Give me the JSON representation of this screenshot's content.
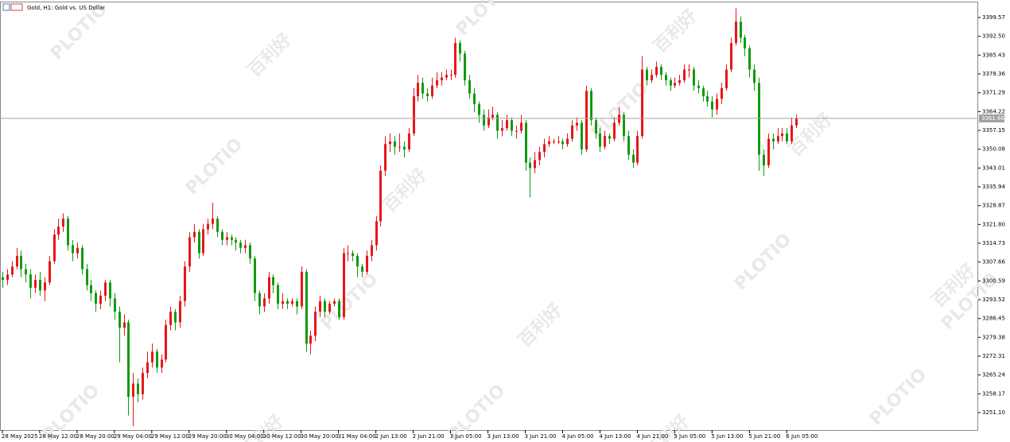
{
  "chart_data": {
    "type": "candlestick",
    "title": "Gold, H1:  Gold vs. US Dollar",
    "watermark_logo": "PLOTIO",
    "watermark_text": "百利好",
    "up_color": "#e8161b",
    "down_color": "#119a11",
    "xlim": [
      -0.5,
      209
    ],
    "ylim": [
      3244.53,
      3405.25
    ],
    "yticks": [
      3399.57,
      {
        "value": 3392.5,
        "label": "3392.50"
      },
      3385.43,
      3378.36,
      3371.29,
      3364.22,
      3357.15,
      3350.08,
      3343.01,
      3335.94,
      3328.87,
      {
        "value": 3321.8,
        "label": "3321.80"
      },
      3314.73,
      3307.66,
      3300.59,
      3293.52,
      3286.45,
      3279.38,
      3272.31,
      3265.24,
      3258.17,
      {
        "value": 3251.1,
        "label": "3251.10"
      }
    ],
    "xticks": [
      {
        "value": 0,
        "label": "28 May 2025"
      },
      {
        "value": 8,
        "label": "28 May 12:00"
      },
      {
        "value": 16,
        "label": "28 May 20:00"
      },
      {
        "value": 24,
        "label": "29 May 04:00"
      },
      {
        "value": 32,
        "label": "29 May 12:00"
      },
      {
        "value": 40,
        "label": "29 May 20:00"
      },
      {
        "value": 48,
        "label": "30 May 04:00"
      },
      {
        "value": 56,
        "label": "30 May 12:00"
      },
      {
        "value": 64,
        "label": "30 May 20:00"
      },
      {
        "value": 72,
        "label": "31 May 04:00"
      },
      {
        "value": 80,
        "label": "2 Jun 13:00"
      },
      {
        "value": 88,
        "label": "2 Jun 21:00"
      },
      {
        "value": 96,
        "label": "3 Jun 05:00"
      },
      {
        "value": 104,
        "label": "3 Jun 13:00"
      },
      {
        "value": 112,
        "label": "3 Jun 21:00"
      },
      {
        "value": 120,
        "label": "4 Jun 05:00"
      },
      {
        "value": 128,
        "label": "4 Jun 13:00"
      },
      {
        "value": 136,
        "label": "4 Jun 21:00"
      },
      {
        "value": 144,
        "label": "5 Jun 05:00"
      },
      {
        "value": 152,
        "label": "5 Jun 13:00"
      },
      {
        "value": 160,
        "label": "5 Jun 21:00"
      },
      {
        "value": 168,
        "label": "6 Jun 05:00"
      }
    ],
    "candles": [
      [
        3302,
        3304,
        3298,
        3301
      ],
      [
        3301,
        3305,
        3299,
        3303
      ],
      [
        3303,
        3308,
        3302,
        3306
      ],
      [
        3306,
        3313,
        3305,
        3310
      ],
      [
        3310,
        3312,
        3302,
        3305
      ],
      [
        3305,
        3307,
        3300,
        3303
      ],
      [
        3303,
        3305,
        3294,
        3298
      ],
      [
        3298,
        3303,
        3296,
        3301
      ],
      [
        3301,
        3304,
        3295,
        3297
      ],
      [
        3297,
        3302,
        3293,
        3300
      ],
      [
        3300,
        3310,
        3299,
        3308
      ],
      [
        3308,
        3320,
        3307,
        3318
      ],
      [
        3318,
        3324,
        3316,
        3321
      ],
      [
        3321,
        3326,
        3319,
        3324
      ],
      [
        3324,
        3325,
        3312,
        3314
      ],
      [
        3314,
        3316,
        3308,
        3311
      ],
      [
        3311,
        3315,
        3309,
        3313
      ],
      [
        3313,
        3314,
        3303,
        3305
      ],
      [
        3305,
        3307,
        3297,
        3299
      ],
      [
        3299,
        3301,
        3293,
        3296
      ],
      [
        3296,
        3297,
        3289,
        3292
      ],
      [
        3292,
        3297,
        3290,
        3295
      ],
      [
        3295,
        3301,
        3293,
        3300
      ],
      [
        3300,
        3301,
        3291,
        3294
      ],
      [
        3294,
        3296,
        3286,
        3289
      ],
      [
        3289,
        3291,
        3270,
        3283
      ],
      [
        3283,
        3288,
        3280,
        3285
      ],
      [
        3285,
        3286,
        3250,
        3257
      ],
      [
        3257,
        3266,
        3246,
        3262
      ],
      [
        3262,
        3264,
        3255,
        3258
      ],
      [
        3258,
        3268,
        3256,
        3266
      ],
      [
        3266,
        3274,
        3264,
        3270
      ],
      [
        3270,
        3277,
        3268,
        3274
      ],
      [
        3274,
        3275,
        3266,
        3268
      ],
      [
        3268,
        3273,
        3266,
        3271
      ],
      [
        3271,
        3286,
        3270,
        3284
      ],
      [
        3284,
        3291,
        3282,
        3289
      ],
      [
        3289,
        3290,
        3282,
        3285
      ],
      [
        3285,
        3295,
        3283,
        3293
      ],
      [
        3293,
        3308,
        3291,
        3306
      ],
      [
        3306,
        3319,
        3304,
        3317
      ],
      [
        3317,
        3322,
        3315,
        3319
      ],
      [
        3319,
        3320,
        3309,
        3311
      ],
      [
        3311,
        3322,
        3310,
        3320
      ],
      [
        3320,
        3324,
        3318,
        3322
      ],
      [
        3322,
        3330,
        3320,
        3324
      ],
      [
        3324,
        3325,
        3317,
        3319
      ],
      [
        3319,
        3320,
        3314,
        3316
      ],
      [
        3316,
        3319,
        3314,
        3317
      ],
      [
        3317,
        3318,
        3314,
        3316
      ],
      [
        3316,
        3317,
        3312,
        3315
      ],
      [
        3315,
        3316,
        3311,
        3313
      ],
      [
        3313,
        3316,
        3311,
        3314
      ],
      [
        3314,
        3315,
        3307,
        3309
      ],
      [
        3309,
        3310,
        3293,
        3296
      ],
      [
        3296,
        3297,
        3288,
        3291
      ],
      [
        3291,
        3296,
        3289,
        3294
      ],
      [
        3294,
        3304,
        3292,
        3302
      ],
      [
        3302,
        3303,
        3296,
        3299
      ],
      [
        3299,
        3300,
        3290,
        3292
      ],
      [
        3292,
        3296,
        3290,
        3293
      ],
      [
        3293,
        3294,
        3290,
        3292
      ],
      [
        3292,
        3294,
        3291,
        3293
      ],
      [
        3293,
        3294,
        3288,
        3291
      ],
      [
        3291,
        3306,
        3290,
        3304
      ],
      [
        3304,
        3305,
        3274,
        3277
      ],
      [
        3277,
        3282,
        3273,
        3280
      ],
      [
        3280,
        3291,
        3278,
        3289
      ],
      [
        3289,
        3295,
        3287,
        3293
      ],
      [
        3293,
        3294,
        3287,
        3289
      ],
      [
        3289,
        3293,
        3288,
        3292
      ],
      [
        3292,
        3294,
        3291,
        3293
      ],
      [
        3293,
        3294,
        3286,
        3287
      ],
      [
        3287,
        3313,
        3286,
        3311
      ],
      [
        3311,
        3314,
        3308,
        3311
      ],
      [
        3311,
        3312,
        3308,
        3310
      ],
      [
        3310,
        3311,
        3302,
        3306
      ],
      [
        3306,
        3307,
        3302,
        3304
      ],
      [
        3304,
        3312,
        3303,
        3310
      ],
      [
        3310,
        3316,
        3308,
        3314
      ],
      [
        3314,
        3325,
        3312,
        3323
      ],
      [
        3323,
        3344,
        3321,
        3342
      ],
      [
        3342,
        3355,
        3340,
        3352
      ],
      [
        3352,
        3356,
        3349,
        3353
      ],
      [
        3353,
        3355,
        3348,
        3351
      ],
      [
        3351,
        3356,
        3349,
        3351
      ],
      [
        3351,
        3353,
        3347,
        3350
      ],
      [
        3350,
        3358,
        3349,
        3356
      ],
      [
        3356,
        3373,
        3355,
        3370
      ],
      [
        3370,
        3378,
        3368,
        3375
      ],
      [
        3375,
        3377,
        3369,
        3371
      ],
      [
        3371,
        3373,
        3368,
        3370
      ],
      [
        3370,
        3377,
        3369,
        3374
      ],
      [
        3374,
        3379,
        3373,
        3376
      ],
      [
        3376,
        3379,
        3374,
        3377
      ],
      [
        3377,
        3380,
        3376,
        3378
      ],
      [
        3378,
        3380,
        3376,
        3378
      ],
      [
        3378,
        3392,
        3377,
        3390
      ],
      [
        3390,
        3391,
        3383,
        3386
      ],
      [
        3386,
        3387,
        3374,
        3376
      ],
      [
        3376,
        3378,
        3369,
        3371
      ],
      [
        3371,
        3373,
        3364,
        3367
      ],
      [
        3367,
        3368,
        3360,
        3363
      ],
      [
        3363,
        3365,
        3357,
        3359
      ],
      [
        3359,
        3365,
        3358,
        3362
      ],
      [
        3362,
        3366,
        3361,
        3363
      ],
      [
        3363,
        3364,
        3354,
        3357
      ],
      [
        3357,
        3361,
        3355,
        3358
      ],
      [
        3358,
        3363,
        3357,
        3361
      ],
      [
        3361,
        3362,
        3355,
        3357
      ],
      [
        3357,
        3359,
        3354,
        3357
      ],
      [
        3357,
        3363,
        3356,
        3360
      ],
      [
        3360,
        3361,
        3342,
        3345
      ],
      [
        3345,
        3347,
        3332,
        3343
      ],
      [
        3343,
        3349,
        3341,
        3346
      ],
      [
        3346,
        3351,
        3344,
        3349
      ],
      [
        3349,
        3354,
        3347,
        3352
      ],
      [
        3352,
        3355,
        3351,
        3353
      ],
      [
        3353,
        3354,
        3352,
        3353
      ],
      [
        3353,
        3355,
        3352,
        3353
      ],
      [
        3353,
        3354,
        3350,
        3352
      ],
      [
        3352,
        3356,
        3351,
        3354
      ],
      [
        3354,
        3361,
        3353,
        3359
      ],
      [
        3359,
        3362,
        3357,
        3360
      ],
      [
        3360,
        3361,
        3348,
        3350
      ],
      [
        3350,
        3374,
        3349,
        3372
      ],
      [
        3372,
        3373,
        3359,
        3361
      ],
      [
        3361,
        3362,
        3354,
        3356
      ],
      [
        3356,
        3358,
        3349,
        3351
      ],
      [
        3351,
        3357,
        3350,
        3355
      ],
      [
        3355,
        3356,
        3352,
        3354
      ],
      [
        3354,
        3362,
        3353,
        3360
      ],
      [
        3360,
        3366,
        3359,
        3363
      ],
      [
        3363,
        3364,
        3353,
        3355
      ],
      [
        3355,
        3357,
        3346,
        3348
      ],
      [
        3348,
        3350,
        3343,
        3345
      ],
      [
        3345,
        3357,
        3344,
        3355
      ],
      [
        3355,
        3385,
        3354,
        3380
      ],
      [
        3380,
        3381,
        3374,
        3376
      ],
      [
        3376,
        3380,
        3375,
        3378
      ],
      [
        3378,
        3383,
        3377,
        3381
      ],
      [
        3381,
        3382,
        3376,
        3378
      ],
      [
        3378,
        3379,
        3374,
        3376
      ],
      [
        3376,
        3377,
        3372,
        3374
      ],
      [
        3374,
        3377,
        3373,
        3375
      ],
      [
        3375,
        3378,
        3374,
        3376
      ],
      [
        3376,
        3382,
        3375,
        3380
      ],
      [
        3380,
        3382,
        3377,
        3380
      ],
      [
        3380,
        3381,
        3372,
        3374
      ],
      [
        3374,
        3376,
        3371,
        3373
      ],
      [
        3373,
        3374,
        3368,
        3370
      ],
      [
        3370,
        3372,
        3366,
        3368
      ],
      [
        3368,
        3370,
        3362,
        3365
      ],
      [
        3365,
        3371,
        3363,
        3369
      ],
      [
        3369,
        3375,
        3367,
        3373
      ],
      [
        3373,
        3382,
        3372,
        3380
      ],
      [
        3380,
        3392,
        3379,
        3390
      ],
      [
        3390,
        3403,
        3389,
        3398
      ],
      [
        3398,
        3400,
        3390,
        3392
      ],
      [
        3392,
        3393,
        3385,
        3388
      ],
      [
        3388,
        3389,
        3377,
        3380
      ],
      [
        3380,
        3382,
        3372,
        3375
      ],
      [
        3375,
        3377,
        3342,
        3348
      ],
      [
        3348,
        3350,
        3340,
        3344
      ],
      [
        3344,
        3356,
        3343,
        3354
      ],
      [
        3354,
        3356,
        3350,
        3353
      ],
      [
        3353,
        3358,
        3352,
        3355
      ],
      [
        3355,
        3358,
        3353,
        3356
      ],
      [
        3356,
        3358,
        3352,
        3353
      ],
      [
        3353,
        3362,
        3352,
        3359
      ],
      [
        3359,
        3363,
        3358,
        3361.66
      ]
    ]
  }
}
